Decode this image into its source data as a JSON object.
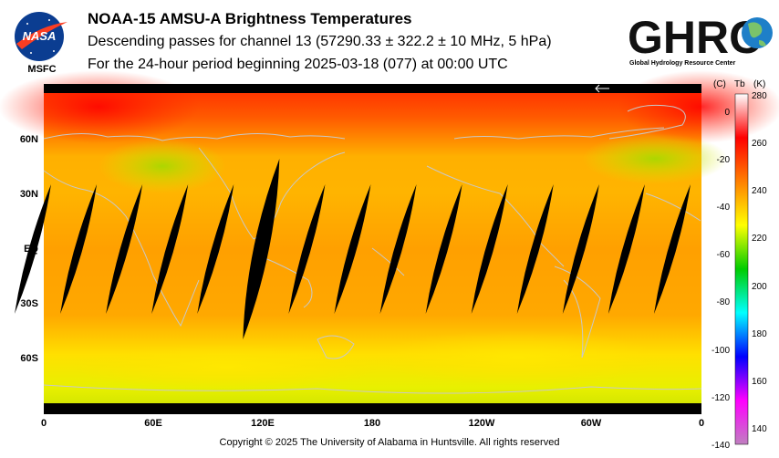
{
  "header": {
    "title": "NOAA-15 AMSU-A Brightness Temperatures",
    "subtitle": "Descending passes for channel 13 (57290.33 ± 322.2 ± 10 MHz, 5 hPa)",
    "period": "For the 24-hour period beginning 2025-03-18 (077) at 00:00 UTC"
  },
  "logos": {
    "nasa": {
      "icon": "nasa-meatball-icon",
      "wordmark": "NASA",
      "caption": "MSFC"
    },
    "ghrc": {
      "icon": "ghrc-globe-icon",
      "wordmark": "GHRC",
      "caption": "Global Hydrology Resource Center"
    }
  },
  "map": {
    "projection": "equirectangular",
    "lat_labels": [
      "60N",
      "30N",
      "EQ",
      "30S",
      "60S"
    ],
    "lon_labels": [
      "0",
      "60E",
      "120E",
      "180",
      "120W",
      "60W",
      "0"
    ],
    "pass_gap_count": 15,
    "colors": {
      "no_data": "#000000",
      "coastline": "#c8c8c8"
    }
  },
  "colorbar": {
    "units": {
      "celsius": "(C)",
      "tb": "Tb",
      "kelvin": "(K)"
    },
    "celsius_ticks": [
      "0",
      "-20",
      "-40",
      "-60",
      "-80",
      "-100",
      "-120",
      "-140"
    ],
    "kelvin_ticks": [
      "280",
      "260",
      "240",
      "220",
      "200",
      "180",
      "160",
      "140"
    ],
    "range_k": [
      134,
      281
    ],
    "stops": [
      "#ffffff",
      "#ff0000",
      "#ff8000",
      "#ffff00",
      "#00cc00",
      "#00ffff",
      "#0000ff",
      "#ff00ff",
      "#c080c0"
    ]
  },
  "footer": {
    "copyright": "Copyright © 2025 The University of Alabama in Huntsville.  All rights reserved"
  }
}
